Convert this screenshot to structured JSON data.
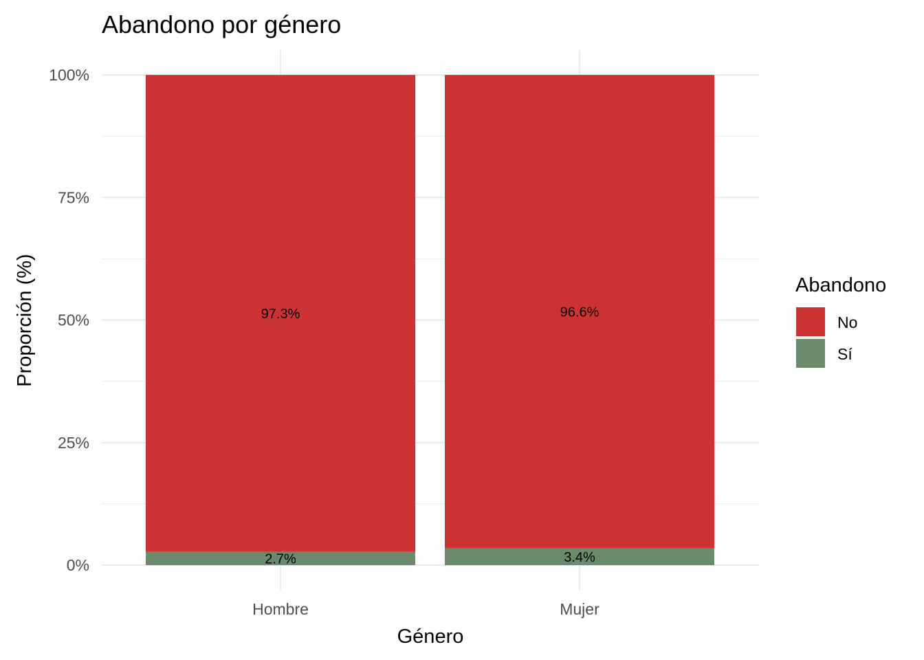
{
  "chart_data": {
    "type": "bar",
    "stacked": true,
    "title": "Abandono por género",
    "xlabel": "Género",
    "ylabel": "Proporción (%)",
    "categories": [
      "Hombre",
      "Mujer"
    ],
    "ylim": [
      0,
      1
    ],
    "yticks": [
      0,
      0.25,
      0.5,
      0.75,
      1
    ],
    "ytick_labels": [
      "0%",
      "25%",
      "50%",
      "75%",
      "100%"
    ],
    "grid": true,
    "legend": {
      "title": "Abandono",
      "position": "right"
    },
    "series": [
      {
        "name": "Sí",
        "color": "#6b8a6b",
        "values": [
          0.027,
          0.034
        ],
        "labels": [
          "2.7%",
          "3.4%"
        ]
      },
      {
        "name": "No",
        "color": "#cd3333",
        "values": [
          0.973,
          0.966
        ],
        "labels": [
          "97.3%",
          "96.6%"
        ]
      }
    ]
  }
}
